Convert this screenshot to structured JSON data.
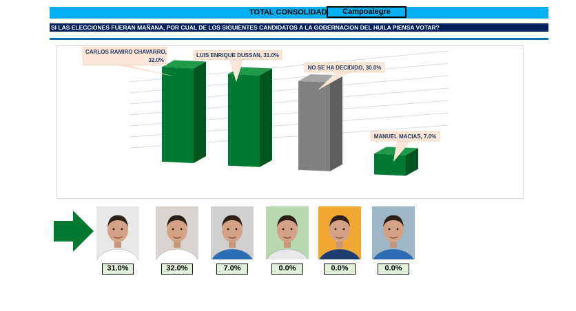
{
  "header": {
    "total_label": "TOTAL CONSOLIDADO",
    "municipality": "Campoalegre"
  },
  "question": "SI LAS ELECCIONES FUERAN MAÑANA, POR CUAL DE LOS SIGUIENTES CANDIDATOS A LA GOBERNACION DEL HUILA PIENSA VOTAR?",
  "colors": {
    "header_bg": "#00b0f0",
    "question_bg": "#002060",
    "rule": "#0070c0",
    "bar_green": "#007a33",
    "bar_gray": "#808080",
    "callout_bg": "#fbe5d6",
    "pct_box_bg": "#e2efda"
  },
  "chart_data": {
    "type": "bar",
    "categories": [
      "CARLOS RAMIRO CHAVARRO",
      "LUIS ENRIQUE DUSSAN",
      "NO SE HA DECIDIDO",
      "MANUEL MACIAS"
    ],
    "values": [
      32.0,
      31.0,
      30.0,
      7.0
    ],
    "data_labels": [
      "CARLOS RAMIRO CHAVARRO,\n32.0%",
      "LUIS ENRIQUE DUSSAN, 31.0%",
      "NO SE HA DECIDIDO, 30.0%",
      "MANUEL MACIAS, 7.0%"
    ],
    "bar_colors": [
      "#007a33",
      "#007a33",
      "#808080",
      "#007a33"
    ],
    "grid": true,
    "ylim": [
      0,
      40
    ]
  },
  "candidates": [
    {
      "name": "candidate-1",
      "pct": "31.0%",
      "selected": true,
      "shirt": "#ffffff",
      "bg": "#e8e8e8"
    },
    {
      "name": "candidate-2",
      "pct": "32.0%",
      "shirt": "#ffffff",
      "bg": "#d9d4cf"
    },
    {
      "name": "candidate-3",
      "pct": "7.0%",
      "shirt": "#2a6fb5",
      "bg": "#cfcfcf"
    },
    {
      "name": "candidate-4",
      "pct": "0.0%",
      "shirt": "#e8e8e8",
      "bg": "#b8d9b0"
    },
    {
      "name": "candidate-5",
      "pct": "0.0%",
      "shirt": "#1f3d6e",
      "bg": "#f0a830"
    },
    {
      "name": "candidate-6",
      "pct": "0.0%",
      "shirt": "#2c6db4",
      "bg": "#9fb8c8"
    }
  ]
}
